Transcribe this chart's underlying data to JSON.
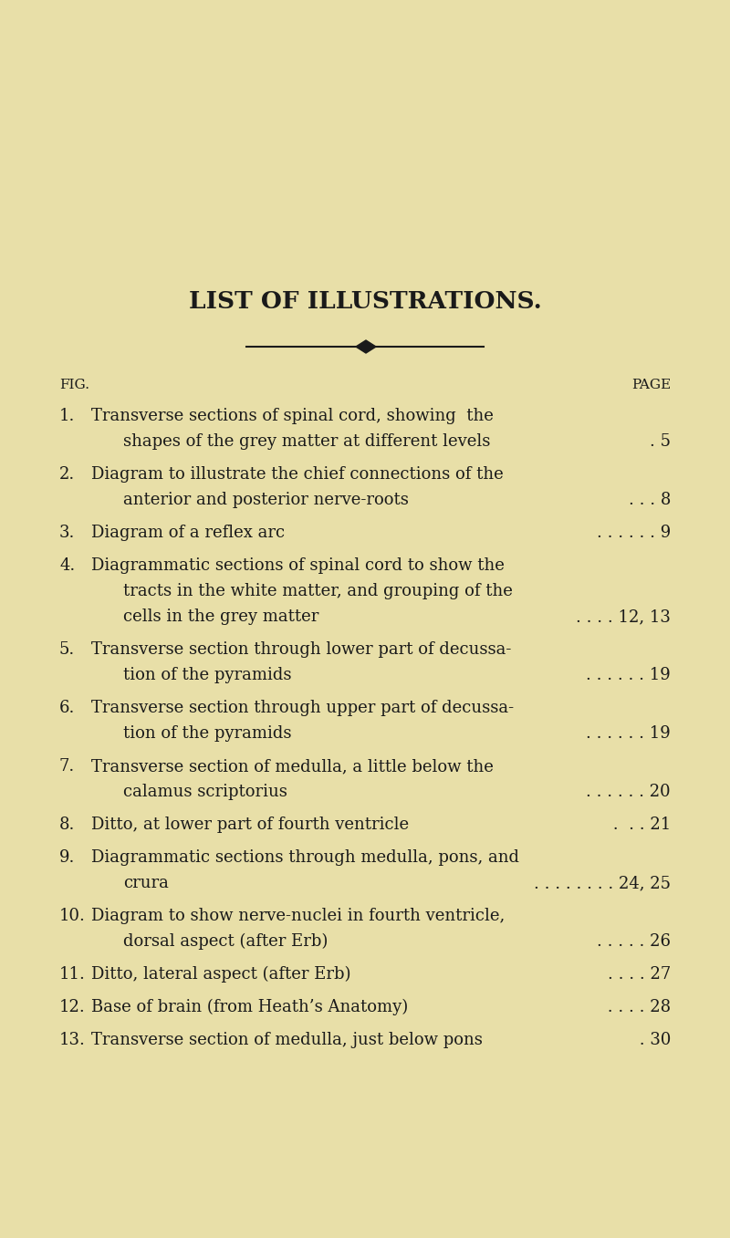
{
  "background_color": "#e8dfa8",
  "title": "LIST OF ILLUSTRATIONS.",
  "title_fontsize": 19,
  "text_color": "#1a1a1a",
  "fig_label": "FIG.",
  "page_label": "PAGE",
  "entries": [
    {
      "num": "1.",
      "lines": [
        "Transverse sections of spinal cord, showing  the",
        "shapes of the grey matter at different levels"
      ],
      "page": "5",
      "page_dots": ". "
    },
    {
      "num": "2.",
      "lines": [
        "Diagram to illustrate the chief connections of the",
        "anterior and posterior nerve-roots"
      ],
      "page": "8",
      "page_dots": ". . . "
    },
    {
      "num": "3.",
      "lines": [
        "Diagram of a reflex arc"
      ],
      "page": "9",
      "page_dots": ". . . . . . "
    },
    {
      "num": "4.",
      "lines": [
        "Diagrammatic sections of spinal cord to show the",
        "tracts in the white matter, and grouping of the",
        "cells in the grey matter"
      ],
      "page": "12, 13",
      "page_dots": ". . . . "
    },
    {
      "num": "5.",
      "lines": [
        "Transverse section through lower part of decussa-",
        "tion of the pyramids"
      ],
      "page": "19",
      "page_dots": ". . . . . . "
    },
    {
      "num": "6.",
      "lines": [
        "Transverse section through upper part of decussa-",
        "tion of the pyramids"
      ],
      "page": "19",
      "page_dots": ". . . . . . "
    },
    {
      "num": "7.",
      "lines": [
        "Transverse section of medulla, a little below the",
        "calamus scriptorius"
      ],
      "page": "20",
      "page_dots": ". . . . . . "
    },
    {
      "num": "8.",
      "lines": [
        "Ditto, at lower part of fourth ventricle"
      ],
      "page": "21",
      "page_dots": " .  . . "
    },
    {
      "num": "9.",
      "lines": [
        "Diagrammatic sections through medulla, pons, and",
        "crura"
      ],
      "page": "24, 25",
      "page_dots": ". . . . . . . . "
    },
    {
      "num": "10.",
      "lines": [
        "Diagram to show nerve-nuclei in fourth ventricle,",
        "dorsal aspect (after Erb)"
      ],
      "page": "26",
      "page_dots": ". . . . . "
    },
    {
      "num": "11.",
      "lines": [
        "Ditto, lateral aspect (after Erb)"
      ],
      "page": "27",
      "page_dots": ". . . . "
    },
    {
      "num": "12.",
      "lines": [
        "Base of brain (from Heath’s Anatomy)"
      ],
      "page": "28",
      "page_dots": " . . . . "
    },
    {
      "num": "13.",
      "lines": [
        "Transverse section of medulla, just below pons"
      ],
      "page": "30",
      "page_dots": " . "
    }
  ]
}
